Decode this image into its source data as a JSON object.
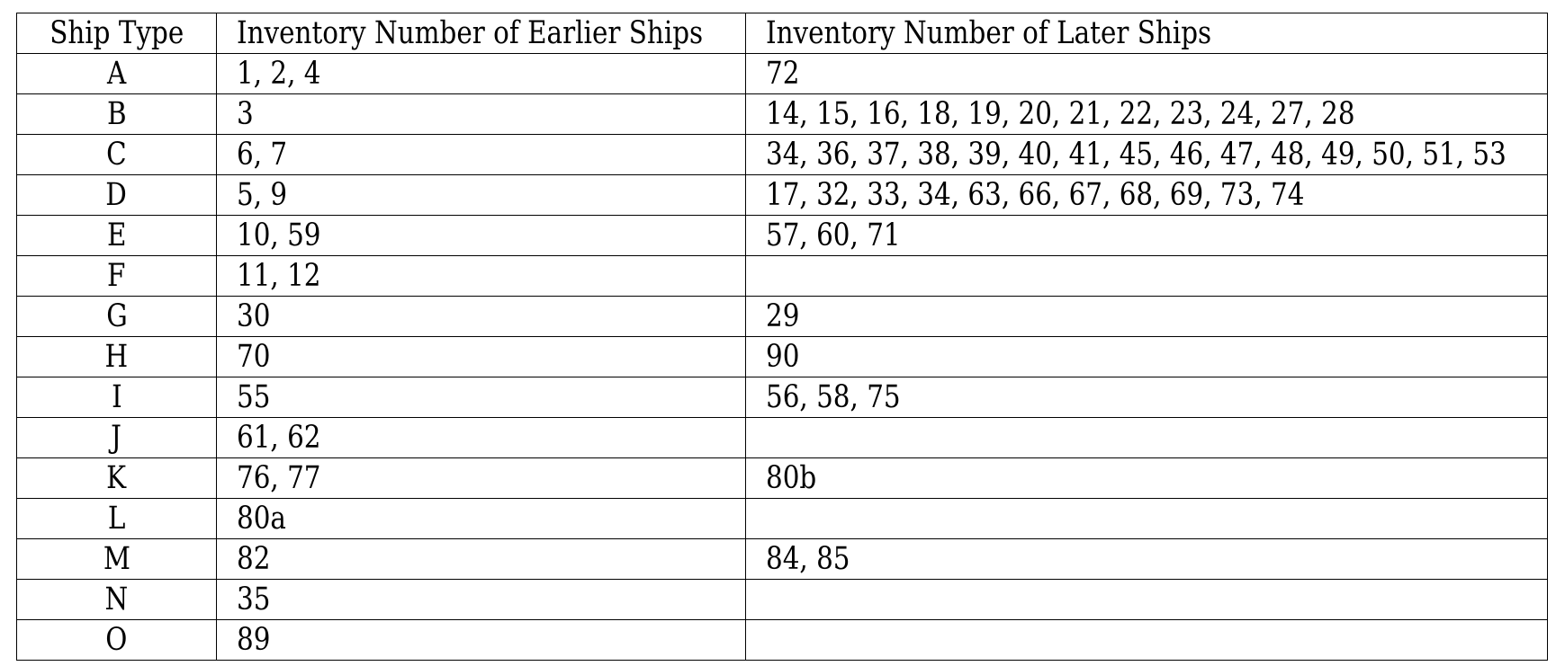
{
  "table": {
    "headers": [
      "Ship Type",
      "Inventory Number of Earlier Ships",
      "Inventory Number of Later Ships"
    ],
    "rows": [
      {
        "type": "A",
        "earlier": "1, 2, 4",
        "later": "72"
      },
      {
        "type": "B",
        "earlier": "3",
        "later": "14, 15, 16, 18, 19, 20, 21, 22, 23, 24, 27, 28"
      },
      {
        "type": "C",
        "earlier": "6, 7",
        "later": "34, 36, 37, 38, 39, 40, 41, 45, 46, 47, 48, 49, 50, 51, 53"
      },
      {
        "type": "D",
        "earlier": "5, 9",
        "later": "17, 32, 33, 34, 63, 66, 67, 68, 69, 73, 74"
      },
      {
        "type": "E",
        "earlier": "10, 59",
        "later": "57, 60, 71"
      },
      {
        "type": "F",
        "earlier": "11, 12",
        "later": ""
      },
      {
        "type": "G",
        "earlier": "30",
        "later": "29"
      },
      {
        "type": "H",
        "earlier": "70",
        "later": "90"
      },
      {
        "type": "I",
        "earlier": "55",
        "later": "56, 58, 75"
      },
      {
        "type": "J",
        "earlier": "61, 62",
        "later": ""
      },
      {
        "type": "K",
        "earlier": "76, 77",
        "later": "80b"
      },
      {
        "type": "L",
        "earlier": "80a",
        "later": ""
      },
      {
        "type": "M",
        "earlier": "82",
        "later": "84, 85"
      },
      {
        "type": "N",
        "earlier": "35",
        "later": ""
      },
      {
        "type": "O",
        "earlier": "89",
        "later": ""
      }
    ]
  }
}
